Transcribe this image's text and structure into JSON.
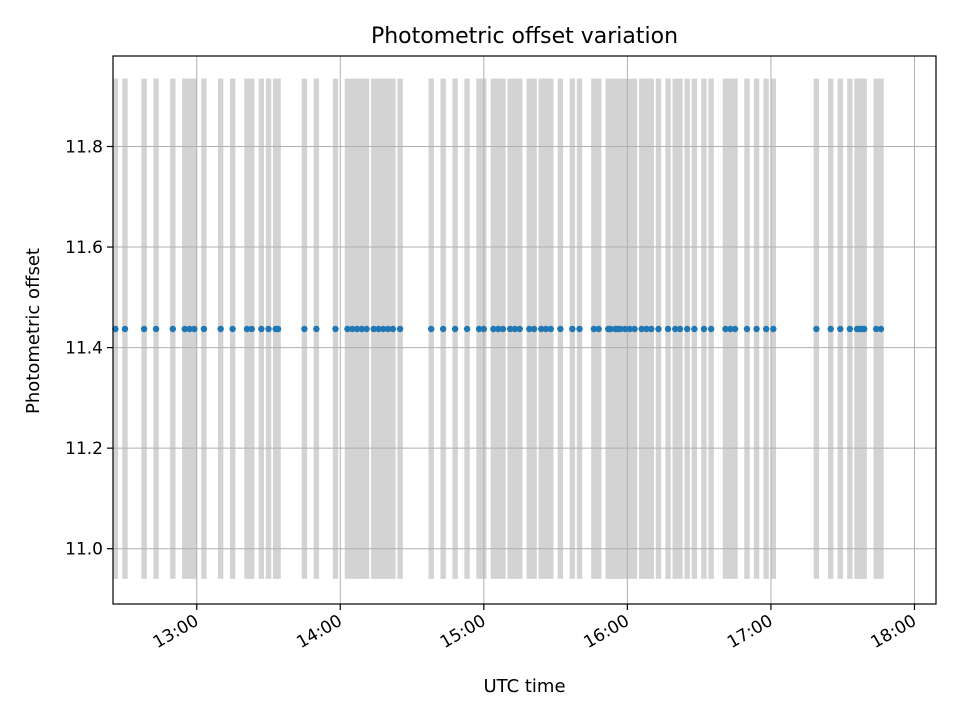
{
  "chart_data": {
    "type": "scatter",
    "title": "Photometric offset variation",
    "xlabel": "UTC time",
    "ylabel": "Photometric offset",
    "x_ticks": [
      "13:00",
      "14:00",
      "15:00",
      "16:00",
      "17:00",
      "18:00"
    ],
    "y_ticks": [
      11.0,
      11.2,
      11.4,
      11.6,
      11.8
    ],
    "xlim": [
      "12:25",
      "18:09"
    ],
    "ylim": [
      10.89,
      11.98
    ],
    "grid": true,
    "colors": {
      "points": "#1f77b4",
      "error_bars": "#d3d3d3",
      "grid": "#b0b0b0"
    },
    "error_bar": {
      "low": 10.94,
      "high": 11.935
    },
    "series": [
      {
        "y": 11.437,
        "x": [
          "12:26",
          "12:30",
          "12:38",
          "12:43",
          "12:50",
          "12:55",
          "12:57",
          "12:59",
          "13:03",
          "13:10",
          "13:15",
          "13:21",
          "13:23",
          "13:27",
          "13:30",
          "13:33",
          "13:34",
          "13:45",
          "13:50",
          "13:58",
          "14:03",
          "14:05",
          "14:07",
          "14:09",
          "14:11",
          "14:14",
          "14:16",
          "14:18",
          "14:20",
          "14:22",
          "14:25",
          "14:38",
          "14:43",
          "14:48",
          "14:53",
          "14:58",
          "15:00",
          "15:04",
          "15:06",
          "15:08",
          "15:11",
          "15:13",
          "15:15",
          "15:19",
          "15:21",
          "15:24",
          "15:26",
          "15:28",
          "15:32",
          "15:37",
          "15:40",
          "15:46",
          "15:48",
          "15:52",
          "15:53",
          "15:55",
          "15:56",
          "15:57",
          "15:59",
          "16:01",
          "16:03",
          "16:06",
          "16:08",
          "16:10",
          "16:13",
          "16:17",
          "16:20",
          "16:22",
          "16:25",
          "16:28",
          "16:32",
          "16:35",
          "16:41",
          "16:43",
          "16:45",
          "16:50",
          "16:54",
          "16:58",
          "17:01",
          "17:19",
          "17:25",
          "17:29",
          "17:33",
          "17:36",
          "17:37",
          "17:38",
          "17:39",
          "17:44",
          "17:46"
        ]
      }
    ]
  }
}
